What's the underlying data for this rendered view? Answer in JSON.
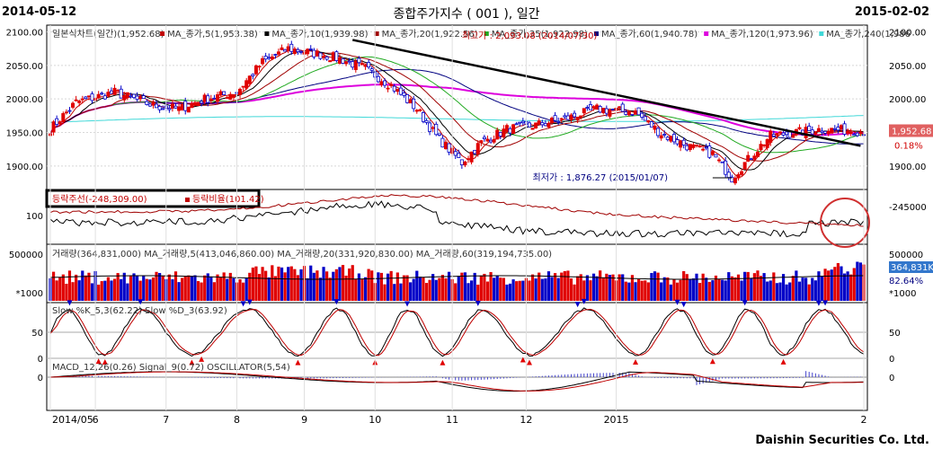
{
  "header": {
    "start_date": "2014-05-12",
    "title": "종합주가지수 ( 001 ), 일간",
    "end_date": "2015-02-02"
  },
  "footer": "Daishin Securities Co. Ltd.",
  "colors": {
    "up": "#e00000",
    "down": "#0000c8",
    "ma5": "#c00000",
    "ma10": "#000000",
    "ma20": "#a00000",
    "ma35": "#22aa22",
    "ma60": "#000080",
    "ma120": "#dd00dd",
    "ma240": "#40d8d8",
    "trend": "#000000",
    "highlight": "#d03030",
    "price_tag": "#e06060"
  },
  "chart_data": [
    {
      "type": "candlestick",
      "panel": "price",
      "legend": [
        "일본식차트(일간)(1,952.68)",
        "MA_종가,5(1,953.38)",
        "MA_종가,10(1,939.98)",
        "MA_종가,20(1,922.56)",
        "MA_종가,35(1,922.98)",
        "MA_종가,60(1,940.78)",
        "MA_종가,120(1,973.96)",
        "MA_종가,240(1,986"
      ],
      "y_ticks": [
        "2100.00",
        "2050.00",
        "2000.00",
        "1950.00",
        "1900.00"
      ],
      "ylim": [
        1865,
        2110
      ],
      "x_ticks": [
        "2014/05",
        "6",
        "7",
        "8",
        "9",
        "10",
        "11",
        "12",
        "2015",
        "2"
      ],
      "keypoints": [
        [
          0,
          1955
        ],
        [
          8,
          1995
        ],
        [
          20,
          2010
        ],
        [
          32,
          1990
        ],
        [
          40,
          1985
        ],
        [
          48,
          2000
        ],
        [
          58,
          2010
        ],
        [
          66,
          2055
        ],
        [
          74,
          2075
        ],
        [
          80,
          2070
        ],
        [
          90,
          2060
        ],
        [
          98,
          2045
        ],
        [
          106,
          2020
        ],
        [
          114,
          1985
        ],
        [
          120,
          1945
        ],
        [
          128,
          1905
        ],
        [
          134,
          1935
        ],
        [
          142,
          1955
        ],
        [
          150,
          1960
        ],
        [
          160,
          1970
        ],
        [
          170,
          1985
        ],
        [
          182,
          1980
        ],
        [
          190,
          1948
        ],
        [
          198,
          1930
        ],
        [
          206,
          1918
        ],
        [
          212,
          1882
        ],
        [
          218,
          1915
        ],
        [
          224,
          1945
        ],
        [
          232,
          1950
        ],
        [
          240,
          1955
        ],
        [
          252,
          1952
        ]
      ],
      "price_tag": "1,952.68",
      "price_tag_pct": "0.18%",
      "high_label": "최고가 : 2,0​93.08 (2014/07/30)",
      "low_label": "최저가 : 1,876.27 (2015/01/07)",
      "trendline": [
        [
          94,
          2088
        ],
        [
          252,
          1930
        ]
      ]
    },
    {
      "type": "line",
      "panel": "breadth",
      "legend": [
        "등락주선(-248,309.00)",
        "등락비율(101.42)"
      ],
      "y_ticks": [
        "100"
      ],
      "right_tick": "-245000",
      "ylim": [
        0,
        1
      ]
    },
    {
      "type": "bar",
      "panel": "volume",
      "legend": [
        "거래량(364,831,000)",
        "MA_거래량,5(413,046,860.00)",
        "MA_거래량,20(331,920,830.00)",
        "MA_거래량,60(319,194,735.00)"
      ],
      "y_ticks": [
        "500000"
      ],
      "unit": "*1000",
      "last_value": "364,831K",
      "pct": "82.64%"
    },
    {
      "type": "line",
      "panel": "stochastic",
      "legend": [
        "Slow %K_5,3(62.22)",
        "Slow %D_3(63.92)"
      ],
      "y_ticks": [
        "50",
        "0"
      ],
      "ylim": [
        0,
        100
      ]
    },
    {
      "type": "line",
      "panel": "macd",
      "legend": [
        "MACD_12,26(0.26)",
        "Signal_9(0.72)",
        "OSCILLATOR(5,54)"
      ],
      "y_ticks": [
        "0"
      ]
    }
  ]
}
